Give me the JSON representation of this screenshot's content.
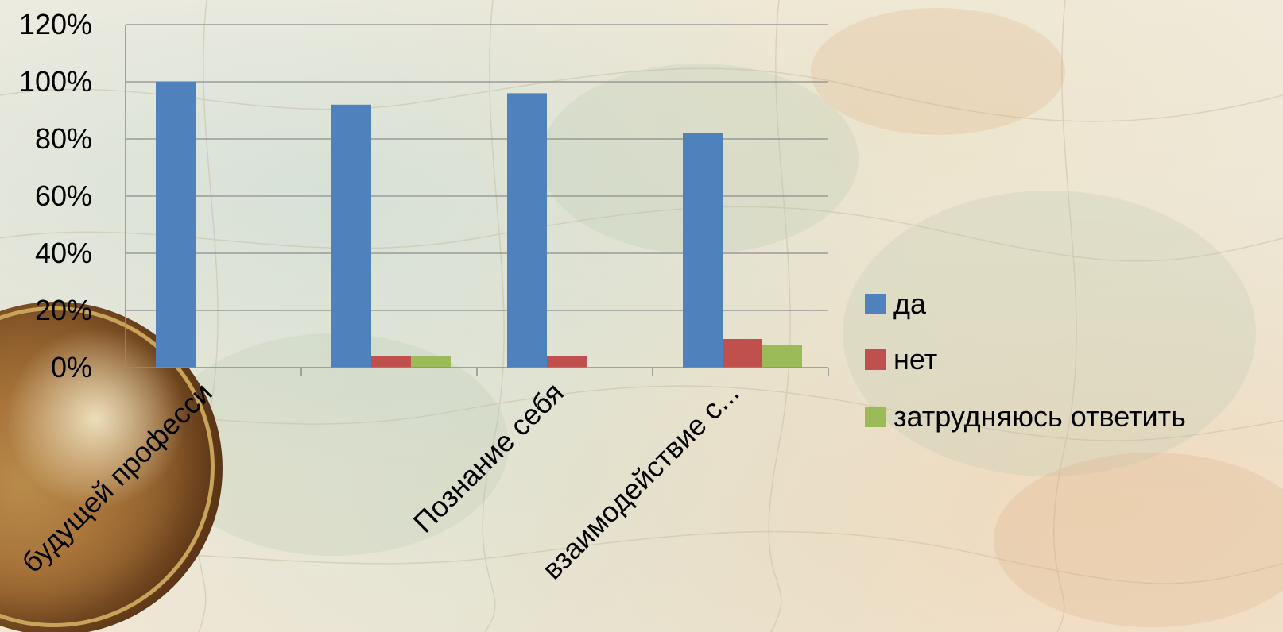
{
  "chart_data": {
    "type": "bar",
    "title": "",
    "xlabel": "",
    "ylabel": "",
    "categories": [
      "будущей професси",
      "",
      "Познание себя",
      "взаимодействие с..."
    ],
    "series": [
      {
        "name": "да",
        "color": "#4F81BD",
        "values": [
          100,
          92,
          96,
          82
        ]
      },
      {
        "name": "нет",
        "color": "#C0504D",
        "values": [
          0,
          4,
          4,
          10
        ]
      },
      {
        "name": "затрудняюсь ответить",
        "color": "#9BBB59",
        "values": [
          0,
          4,
          0,
          8
        ]
      }
    ],
    "ylim": [
      0,
      120
    ],
    "y_ticks": [
      "0%",
      "20%",
      "40%",
      "60%",
      "80%",
      "100%",
      "120%"
    ],
    "y_tick_values": [
      0,
      20,
      40,
      60,
      80,
      100,
      120
    ],
    "grid": true,
    "legend_position": "right"
  },
  "legend": {
    "items": [
      {
        "label": "да",
        "color": "#4F81BD"
      },
      {
        "label": "нет",
        "color": "#C0504D"
      },
      {
        "label": "затрудняюсь ответить",
        "color": "#9BBB59"
      }
    ]
  },
  "background": {
    "theme": "antique map",
    "globe_icon": "globe-icon"
  }
}
